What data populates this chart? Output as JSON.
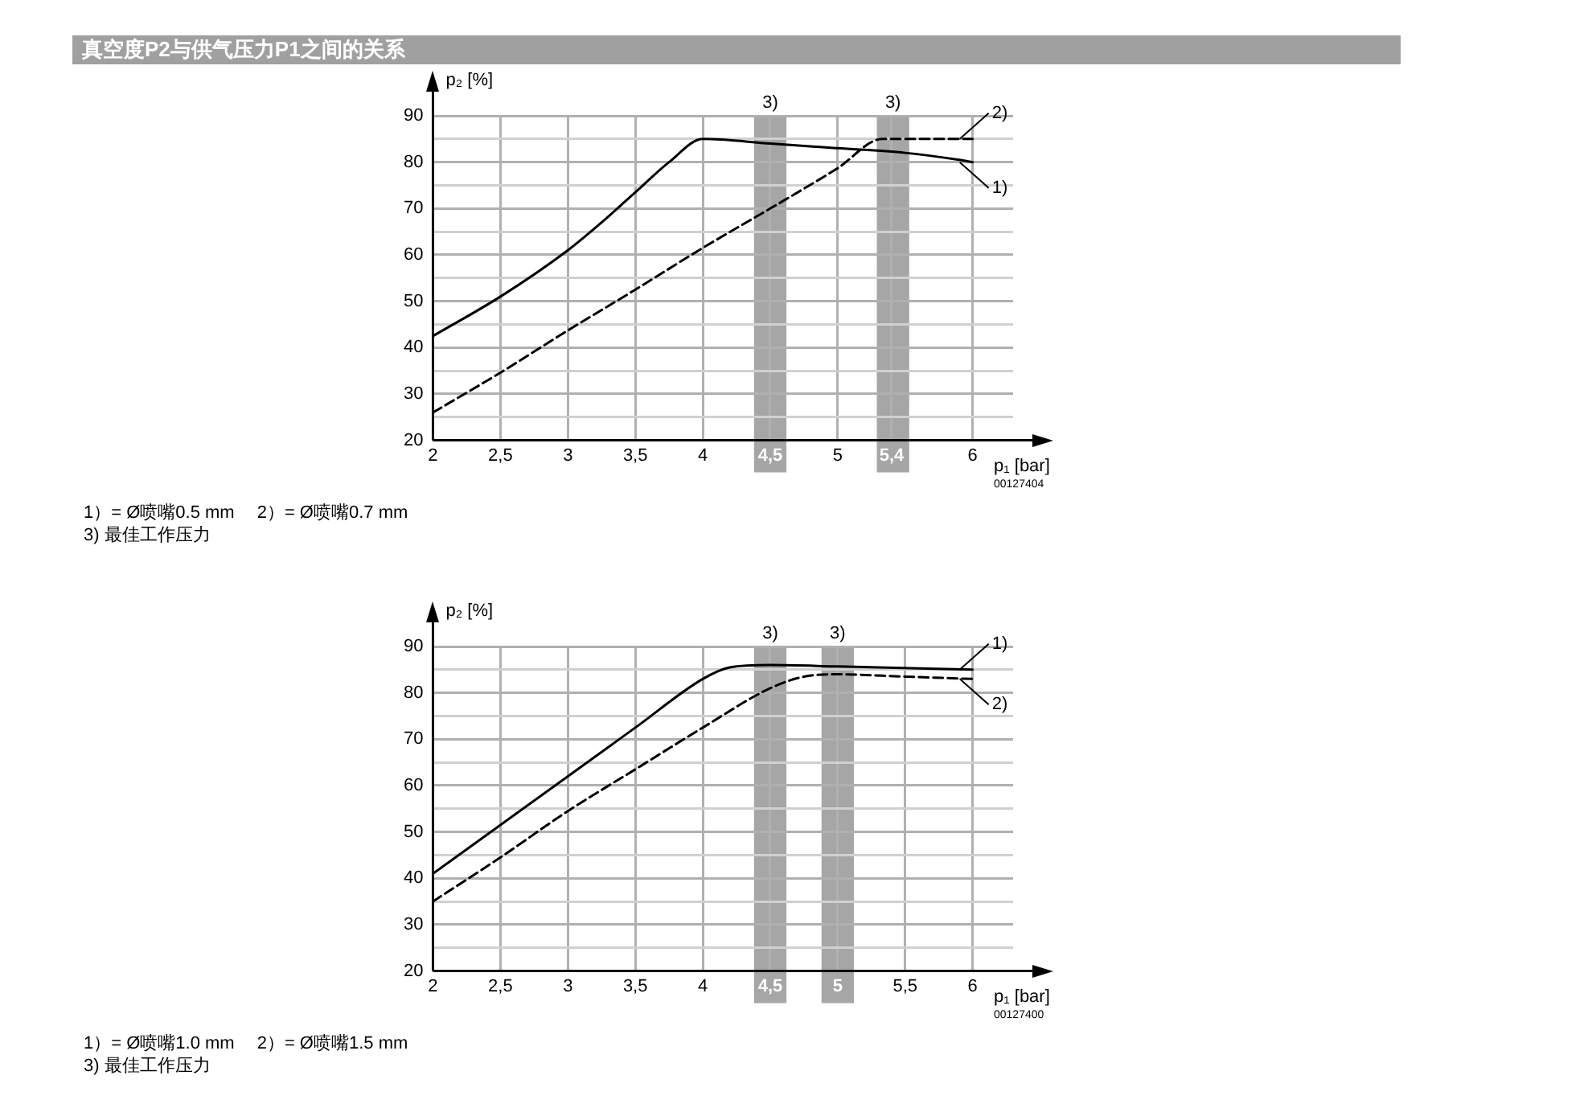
{
  "chart_data": [
    {
      "type": "line",
      "title": "真空度P2与供气压力P1之间的关系",
      "xlabel": "p₁ [bar]",
      "ylabel": "p₂ [%]",
      "xlim": [
        2,
        6.3
      ],
      "xticks": [
        2,
        {
          "value": 2.5,
          "label": "2,5"
        },
        3,
        {
          "value": 3.5,
          "label": "3,5"
        },
        4,
        {
          "value": 4.5,
          "label": "4,5"
        },
        5,
        {
          "value": 5.4,
          "label": "5,4"
        },
        6
      ],
      "ylim": [
        20,
        90
      ],
      "yticks": [
        20,
        {
          "value": 25,
          "label": null
        },
        30,
        {
          "value": 35,
          "label": null
        },
        40,
        {
          "value": 45,
          "label": null
        },
        50,
        {
          "value": 55,
          "label": null
        },
        60,
        {
          "value": 65,
          "label": null
        },
        70,
        {
          "value": 75,
          "label": null
        },
        80,
        {
          "value": 85,
          "label": null
        },
        90
      ],
      "grid": true,
      "legend": false,
      "marker": "none",
      "series": [
        {
          "name": "1)",
          "color": "#000000",
          "line_style": "solid",
          "x": [
            2,
            2.5,
            3,
            3.25,
            3.5,
            3.75,
            4,
            4.5,
            5,
            5.5,
            5.9,
            6
          ],
          "values": [
            42.5,
            51,
            61,
            67,
            73.5,
            80,
            85,
            84,
            83,
            82,
            80.5,
            80
          ]
        },
        {
          "name": "2)",
          "color": "#000000",
          "line_style": "dashed",
          "x": [
            2,
            2.5,
            3,
            3.5,
            4,
            4.5,
            5,
            5.33,
            6
          ],
          "values": [
            26,
            34.6,
            43.7,
            52.5,
            61.5,
            70,
            78.7,
            85,
            85
          ]
        }
      ],
      "bands": [
        {
          "axis": "x",
          "from": 4.38,
          "to": 4.62,
          "label": "3)",
          "color": "#a6a6a6"
        },
        {
          "axis": "x",
          "from": 5.29,
          "to": 5.53,
          "label": "3)",
          "color": "#a6a6a6"
        }
      ],
      "annotations": [
        "00127404",
        "1）= Ø喷嘴0.5 mm",
        "2）= Ø喷嘴0.7 mm",
        "3) 最佳工作压力"
      ]
    },
    {
      "type": "line",
      "xlabel": "p₁ [bar]",
      "ylabel": "p₂ [%]",
      "xlim": [
        2,
        6.3
      ],
      "xticks": [
        2,
        {
          "value": 2.5,
          "label": "2,5"
        },
        3,
        {
          "value": 3.5,
          "label": "3,5"
        },
        4,
        {
          "value": 4.5,
          "label": "4,5"
        },
        5,
        {
          "value": 5.5,
          "label": "5,5"
        },
        6
      ],
      "ylim": [
        20,
        90
      ],
      "yticks": [
        20,
        {
          "value": 25,
          "label": null
        },
        30,
        {
          "value": 35,
          "label": null
        },
        40,
        {
          "value": 45,
          "label": null
        },
        50,
        {
          "value": 55,
          "label": null
        },
        60,
        {
          "value": 65,
          "label": null
        },
        70,
        {
          "value": 75,
          "label": null
        },
        80,
        {
          "value": 85,
          "label": null
        },
        90
      ],
      "grid": true,
      "legend": false,
      "marker": "none",
      "series": [
        {
          "name": "1)",
          "color": "#000000",
          "line_style": "solid",
          "x": [
            2,
            2.5,
            3,
            3.5,
            4,
            4.2,
            4.5,
            5,
            6
          ],
          "values": [
            41,
            51.5,
            62,
            72.5,
            83,
            85.5,
            86,
            85.7,
            85
          ]
        },
        {
          "name": "2)",
          "color": "#000000",
          "line_style": "dashed",
          "x": [
            2,
            2.5,
            3,
            3.5,
            4,
            4.5,
            4.75,
            5,
            5.5,
            6
          ],
          "values": [
            35,
            44.5,
            54.5,
            63.5,
            72.5,
            81,
            83.5,
            84,
            83.5,
            83
          ]
        }
      ],
      "bands": [
        {
          "axis": "x",
          "from": 4.38,
          "to": 4.62,
          "label": "3)",
          "color": "#a6a6a6"
        },
        {
          "axis": "x",
          "from": 4.88,
          "to": 5.12,
          "label": "3)",
          "color": "#a6a6a6"
        }
      ],
      "annotations": [
        "00127400",
        "1）= Ø喷嘴1.0 mm",
        "2）= Ø喷嘴1.5 mm",
        "3) 最佳工作压力"
      ]
    }
  ]
}
